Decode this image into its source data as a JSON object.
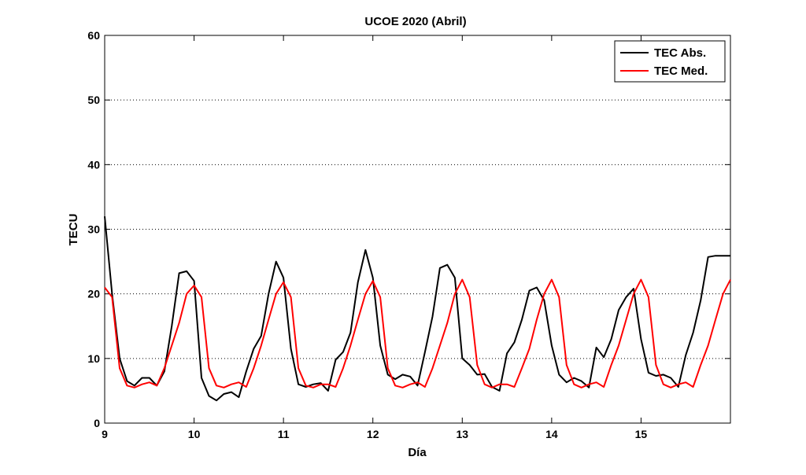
{
  "chart_data": {
    "type": "line",
    "title": "UCOE 2020 (Abril)",
    "xlabel": "Día",
    "ylabel": "TECU",
    "xlim": [
      9,
      16
    ],
    "ylim": [
      0,
      60
    ],
    "x_ticks": [
      9,
      10,
      11,
      12,
      13,
      14,
      15
    ],
    "y_ticks": [
      0,
      10,
      20,
      30,
      40,
      50,
      60
    ],
    "grid": "horizontal-dotted",
    "legend_position": "top-right",
    "step_hours": 2,
    "series": [
      {
        "name": "TEC Abs.",
        "color": "#000000",
        "x": [
          9.0,
          9.083,
          9.167,
          9.25,
          9.333,
          9.417,
          9.5,
          9.583,
          9.667,
          9.75,
          9.833,
          9.917,
          10.0,
          10.083,
          10.167,
          10.25,
          10.333,
          10.417,
          10.5,
          10.583,
          10.667,
          10.75,
          10.833,
          10.917,
          11.0,
          11.083,
          11.167,
          11.25,
          11.333,
          11.417,
          11.5,
          11.583,
          11.667,
          11.75,
          11.833,
          11.917,
          12.0,
          12.083,
          12.167,
          12.25,
          12.333,
          12.417,
          12.5,
          12.583,
          12.667,
          12.75,
          12.833,
          12.917,
          13.0,
          13.083,
          13.167,
          13.25,
          13.333,
          13.417,
          13.5,
          13.583,
          13.667,
          13.75,
          13.833,
          13.917,
          14.0,
          14.083,
          14.167,
          14.25,
          14.333,
          14.417,
          14.5,
          14.583,
          14.667,
          14.75,
          14.833,
          14.917,
          15.0,
          15.083,
          15.167,
          15.25,
          15.333,
          15.417,
          15.5,
          15.583,
          15.667,
          15.75,
          15.833,
          15.917,
          16.0
        ],
        "y": [
          32.0,
          20.0,
          10.0,
          6.5,
          5.8,
          7.0,
          7.0,
          5.8,
          8.0,
          15.0,
          23.2,
          23.5,
          22.0,
          7.0,
          4.2,
          3.5,
          4.5,
          4.8,
          4.0,
          8.0,
          11.5,
          13.5,
          20.0,
          25.0,
          22.5,
          11.5,
          6.0,
          5.6,
          6.0,
          6.2,
          5.0,
          9.8,
          11.0,
          14.0,
          21.8,
          26.8,
          22.5,
          12.0,
          7.5,
          6.8,
          7.5,
          7.2,
          5.8,
          11.0,
          16.5,
          24.0,
          24.5,
          22.5,
          10.0,
          9.0,
          7.5,
          7.6,
          5.6,
          5.0,
          10.8,
          12.5,
          16.0,
          20.5,
          21.0,
          19.0,
          12.0,
          7.5,
          6.3,
          7.0,
          6.5,
          5.5,
          11.7,
          10.2,
          13.0,
          17.5,
          19.5,
          20.8,
          13.0,
          7.8,
          7.3,
          7.5,
          7.0,
          5.6,
          10.5,
          14.0,
          19.0,
          25.7,
          25.9,
          25.9,
          25.9
        ]
      },
      {
        "name": "TEC Med.",
        "color": "#ff0000",
        "x": [
          9.0,
          9.083,
          9.167,
          9.25,
          9.333,
          9.417,
          9.5,
          9.583,
          9.667,
          9.75,
          9.833,
          9.917,
          10.0,
          10.083,
          10.167,
          10.25,
          10.333,
          10.417,
          10.5,
          10.583,
          10.667,
          10.75,
          10.833,
          10.917,
          11.0,
          11.083,
          11.167,
          11.25,
          11.333,
          11.417,
          11.5,
          11.583,
          11.667,
          11.75,
          11.833,
          11.917,
          12.0,
          12.083,
          12.167,
          12.25,
          12.333,
          12.417,
          12.5,
          12.583,
          12.667,
          12.75,
          12.833,
          12.917,
          13.0,
          13.083,
          13.167,
          13.25,
          13.333,
          13.417,
          13.5,
          13.583,
          13.667,
          13.75,
          13.833,
          13.917,
          14.0,
          14.083,
          14.167,
          14.25,
          14.333,
          14.417,
          14.5,
          14.583,
          14.667,
          14.75,
          14.833,
          14.917,
          15.0,
          15.083,
          15.167,
          15.25,
          15.333,
          15.417,
          15.5,
          15.583,
          15.667,
          15.75,
          15.833,
          15.917,
          16.0
        ],
        "y": [
          21.0,
          19.5,
          8.5,
          5.8,
          5.5,
          6.0,
          6.3,
          5.8,
          8.5,
          12.0,
          15.5,
          20.0,
          21.3,
          19.5,
          8.5,
          5.8,
          5.5,
          6.0,
          6.3,
          5.6,
          8.5,
          12.0,
          16.0,
          20.0,
          21.8,
          19.5,
          8.5,
          5.8,
          5.5,
          6.0,
          6.0,
          5.6,
          8.5,
          12.0,
          16.0,
          20.0,
          22.0,
          19.5,
          8.5,
          5.8,
          5.5,
          6.0,
          6.3,
          5.6,
          8.5,
          12.0,
          15.5,
          20.0,
          22.2,
          19.5,
          9.0,
          6.0,
          5.5,
          6.0,
          6.0,
          5.6,
          8.5,
          11.5,
          16.0,
          20.0,
          22.2,
          19.5,
          9.0,
          6.0,
          5.5,
          6.0,
          6.3,
          5.6,
          9.0,
          12.0,
          16.0,
          20.0,
          22.2,
          19.5,
          9.0,
          6.0,
          5.5,
          6.0,
          6.3,
          5.6,
          9.0,
          12.0,
          16.0,
          20.0,
          22.2
        ]
      }
    ]
  }
}
